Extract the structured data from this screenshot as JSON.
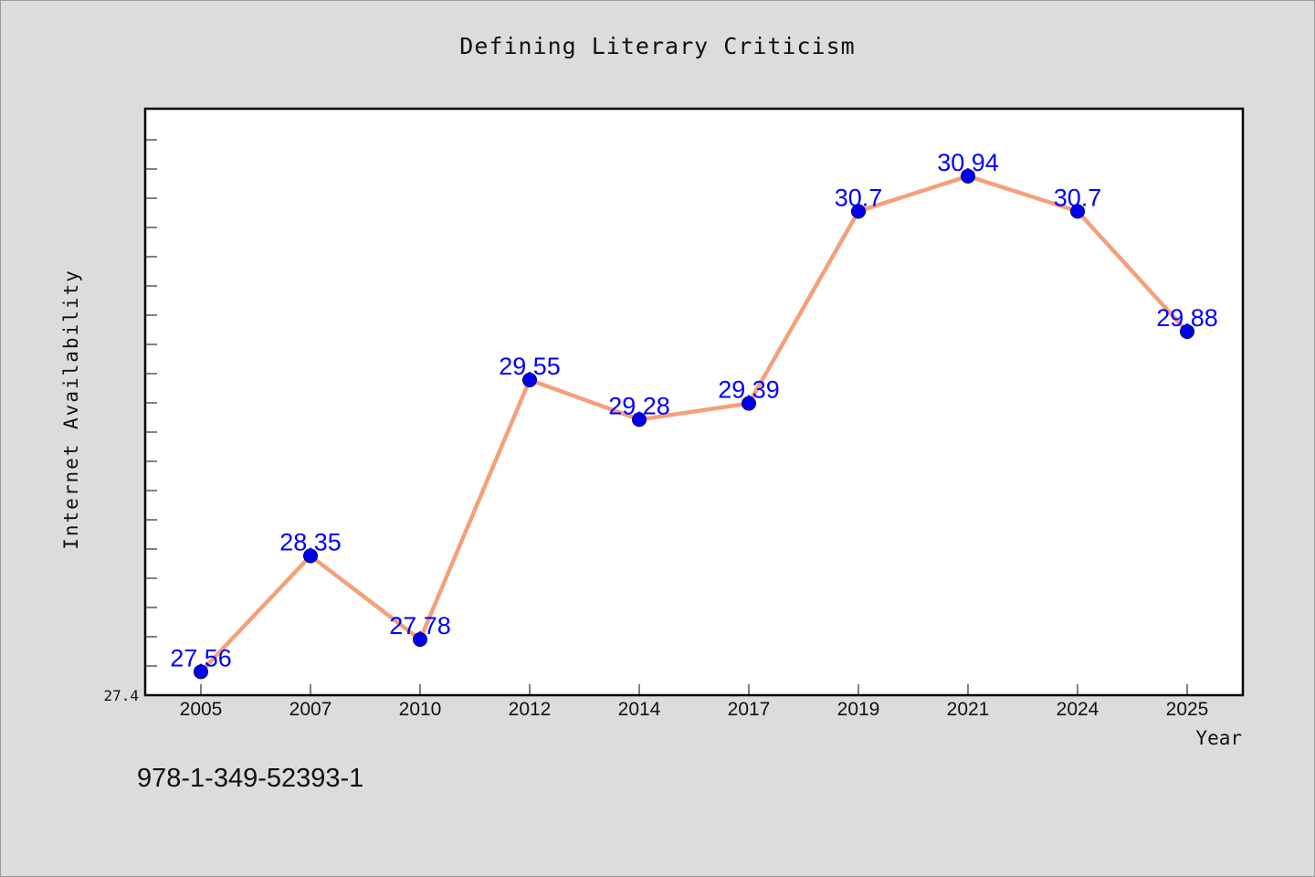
{
  "chart_data": {
    "type": "line",
    "title": "Defining Literary Criticism",
    "xlabel": "Year",
    "ylabel": "Internet Availability",
    "categories": [
      "2005",
      "2007",
      "2010",
      "2012",
      "2014",
      "2017",
      "2019",
      "2021",
      "2024",
      "2025"
    ],
    "series": [
      {
        "values": [
          27.56,
          28.35,
          27.78,
          29.55,
          29.28,
          29.39,
          30.7,
          30.94,
          30.7,
          29.88
        ],
        "labels": [
          "27.56",
          "28.35",
          "27.78",
          "29.55",
          "29.28",
          "29.39",
          "30.7",
          "30.94",
          "30.7",
          "29.88"
        ]
      }
    ],
    "ylim": [
      27.4,
      31.4
    ],
    "y_tick_labels": [
      "27.4"
    ],
    "grid": false,
    "colors": {
      "line": "#f4a07a",
      "marker": "#0000ee",
      "data_label": "#0000ff",
      "plot_background": "#ffffff",
      "figure_background": "#dcdcdc"
    }
  },
  "footnote": "978-1-349-52393-1"
}
